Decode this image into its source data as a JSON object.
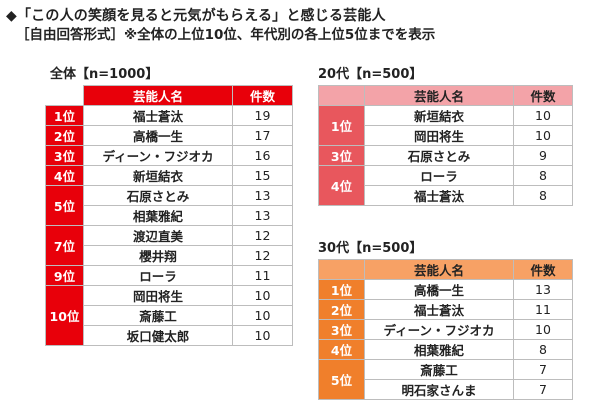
{
  "title": "◆「この人の笑顔を見ると元気がもらえる」と感じる芸能人",
  "subtitle": "［自由回答形式］※全体の上位10位、年代別の各上位5位までを表示",
  "colors": {
    "overall": "#e8000a",
    "age20": "#e8575d",
    "age30": "#f07f2b"
  },
  "chart_data": [
    {
      "type": "table",
      "label": "全体【n=1000】",
      "columns": [
        "芸能人名",
        "件数"
      ],
      "rows": [
        {
          "rank": "1位",
          "name": "福士蒼汰",
          "count": 19
        },
        {
          "rank": "2位",
          "name": "高橋一生",
          "count": 17
        },
        {
          "rank": "3位",
          "name": "ディーン・フジオカ",
          "count": 16
        },
        {
          "rank": "4位",
          "name": "新垣結衣",
          "count": 15
        },
        {
          "rank": "5位",
          "name": "石原さとみ",
          "count": 13
        },
        {
          "rank": "5位",
          "name": "相葉雅紀",
          "count": 13
        },
        {
          "rank": "7位",
          "name": "渡辺直美",
          "count": 12
        },
        {
          "rank": "7位",
          "name": "櫻井翔",
          "count": 12
        },
        {
          "rank": "9位",
          "name": "ローラ",
          "count": 11
        },
        {
          "rank": "10位",
          "name": "岡田将生",
          "count": 10
        },
        {
          "rank": "10位",
          "name": "斎藤工",
          "count": 10
        },
        {
          "rank": "10位",
          "name": "坂口健太郎",
          "count": 10
        }
      ]
    },
    {
      "type": "table",
      "label": "20代【n=500】",
      "columns": [
        "芸能人名",
        "件数"
      ],
      "rows": [
        {
          "rank": "1位",
          "name": "新垣結衣",
          "count": 10
        },
        {
          "rank": "1位",
          "name": "岡田将生",
          "count": 10
        },
        {
          "rank": "3位",
          "name": "石原さとみ",
          "count": 9
        },
        {
          "rank": "4位",
          "name": "ローラ",
          "count": 8
        },
        {
          "rank": "4位",
          "name": "福士蒼汰",
          "count": 8
        }
      ]
    },
    {
      "type": "table",
      "label": "30代【n=500】",
      "columns": [
        "芸能人名",
        "件数"
      ],
      "rows": [
        {
          "rank": "1位",
          "name": "高橋一生",
          "count": 13
        },
        {
          "rank": "2位",
          "name": "福士蒼汰",
          "count": 11
        },
        {
          "rank": "3位",
          "name": "ディーン・フジオカ",
          "count": 10
        },
        {
          "rank": "4位",
          "name": "相葉雅紀",
          "count": 8
        },
        {
          "rank": "5位",
          "name": "斎藤工",
          "count": 7
        },
        {
          "rank": "5位",
          "name": "明石家さんま",
          "count": 7
        }
      ]
    }
  ]
}
